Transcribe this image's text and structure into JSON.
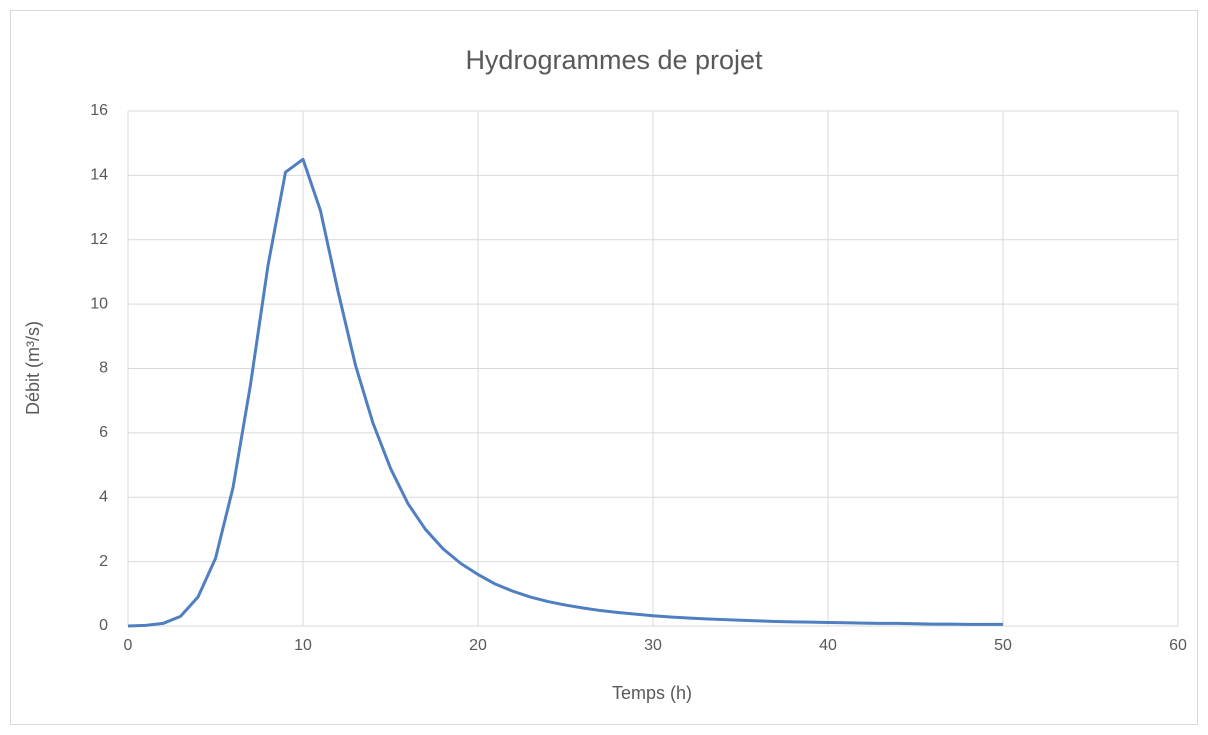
{
  "chart_data": {
    "type": "line",
    "title": "Hydrogrammes de projet",
    "x_label": "Temps (h)",
    "y_label": "Débit (m³/s)",
    "x": [
      0,
      1,
      2,
      3,
      4,
      5,
      6,
      7,
      8,
      9,
      10,
      11,
      12,
      13,
      14,
      15,
      16,
      17,
      18,
      19,
      20,
      21,
      22,
      23,
      24,
      25,
      26,
      27,
      28,
      29,
      30,
      31,
      32,
      33,
      34,
      35,
      36,
      37,
      38,
      39,
      40,
      41,
      42,
      43,
      44,
      45,
      46,
      47,
      48,
      49,
      50
    ],
    "series": [
      {
        "name": "Débit",
        "color": "#4f7fc0",
        "values": [
          0,
          0.02,
          0.08,
          0.3,
          0.9,
          2.1,
          4.3,
          7.5,
          11.2,
          14.1,
          14.5,
          12.9,
          10.4,
          8.1,
          6.3,
          4.9,
          3.8,
          3.0,
          2.4,
          1.95,
          1.6,
          1.3,
          1.08,
          0.9,
          0.76,
          0.65,
          0.56,
          0.48,
          0.42,
          0.37,
          0.32,
          0.28,
          0.25,
          0.22,
          0.2,
          0.18,
          0.16,
          0.14,
          0.13,
          0.12,
          0.11,
          0.1,
          0.09,
          0.08,
          0.08,
          0.07,
          0.06,
          0.06,
          0.05,
          0.05,
          0.05
        ]
      }
    ],
    "xlim": [
      0,
      60
    ],
    "xticks": [
      0,
      10,
      20,
      30,
      40,
      50,
      60
    ],
    "ylim": [
      0,
      16
    ],
    "yticks": [
      0,
      2,
      4,
      6,
      8,
      10,
      12,
      14,
      16
    ],
    "grid": true
  }
}
